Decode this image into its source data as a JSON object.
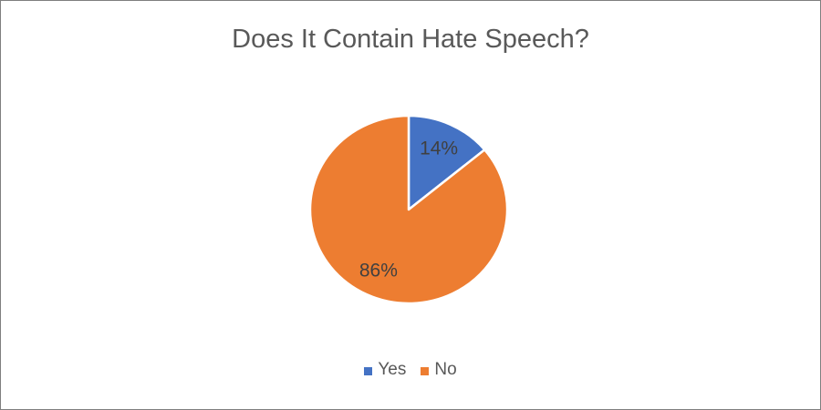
{
  "page": {
    "background_color": "#ffffff",
    "border_color": "#7f7f7f"
  },
  "chart_data": {
    "type": "pie",
    "title": "Does It Contain Hate Speech?",
    "categories": [
      "Yes",
      "No"
    ],
    "values": [
      14,
      86
    ],
    "value_labels": [
      "14%",
      "86%"
    ],
    "colors": [
      "#4472C4",
      "#ED7D31"
    ],
    "start_angle_deg": 0,
    "direction": "clockwise",
    "legend_position": "bottom",
    "slice_separator_color": "#ffffff",
    "title_color": "#595959",
    "data_label_color": "#404040",
    "legend_text_color": "#595959"
  }
}
